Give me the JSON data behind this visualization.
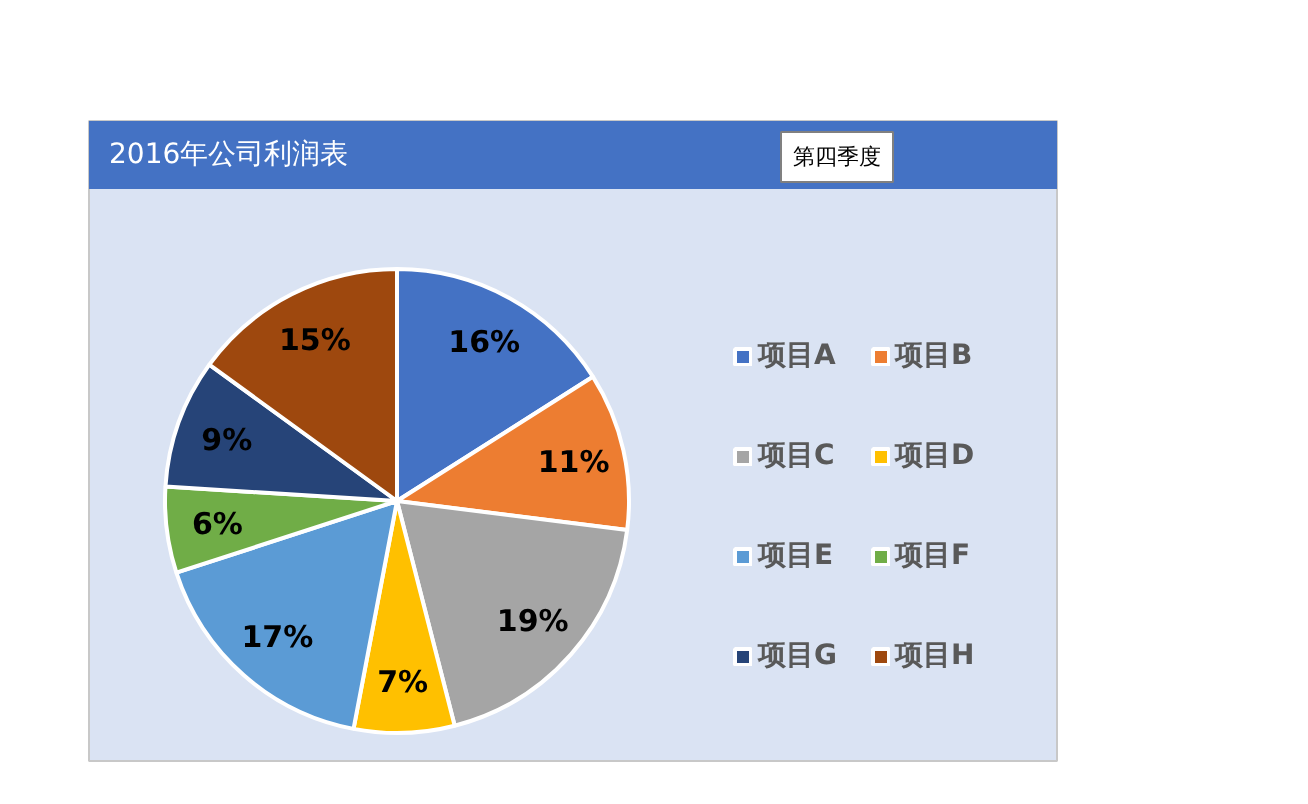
{
  "chart_data": {
    "type": "pie",
    "title": "2016年公司利润表",
    "subtitle": "第四季度",
    "categories": [
      "项目A",
      "项目B",
      "项目C",
      "项目D",
      "项目E",
      "项目F",
      "项目G",
      "项目H"
    ],
    "values": [
      16,
      11,
      19,
      7,
      17,
      6,
      9,
      15
    ],
    "colors": [
      "#4472c4",
      "#ed7d31",
      "#a5a5a5",
      "#ffc000",
      "#5b9bd5",
      "#70ad47",
      "#264478",
      "#9e480e"
    ],
    "value_labels": [
      "16%",
      "11%",
      "19%",
      "7%",
      "17%",
      "6%",
      "9%",
      "15%"
    ],
    "legend": "right"
  }
}
